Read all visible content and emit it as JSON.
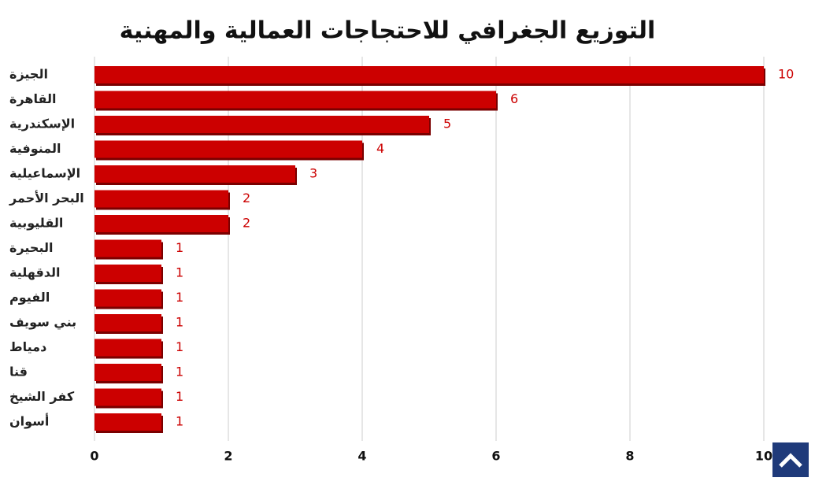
{
  "chart_data": {
    "type": "hbar",
    "title": "التوزيع الجغرافي للاحتجاجات العمالية والمهنية",
    "categories": [
      "الجيزة",
      "القاهرة",
      "الإسكندرية",
      "المنوفية",
      "الإسماعيلية",
      "البحر الأحمر",
      "القليوبية",
      "البحيرة",
      "الدقهلية",
      "الفيوم",
      "بني سويف",
      "دمياط",
      "قنا",
      "كفر الشيخ",
      "أسوان"
    ],
    "values": [
      10,
      6,
      5,
      4,
      3,
      2,
      2,
      1,
      1,
      1,
      1,
      1,
      1,
      1,
      1
    ],
    "color": "#cc0000",
    "xlim": [
      0,
      10
    ],
    "xticks": [
      0,
      2,
      4,
      6,
      8,
      10
    ],
    "grid": true
  }
}
